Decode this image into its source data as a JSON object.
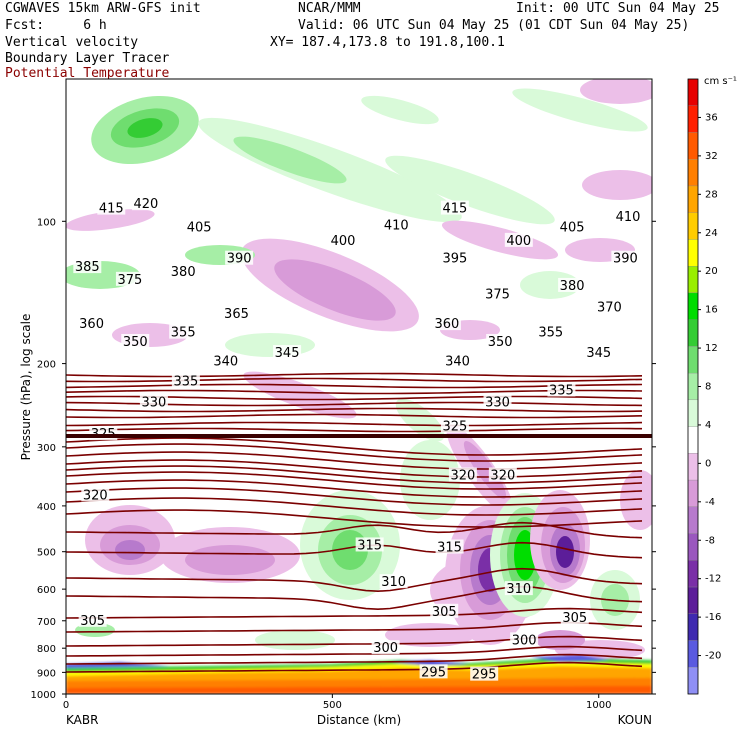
{
  "header": {
    "left1": "CGWAVES 15km ARW-GFS init",
    "left2": "Fcst:     6 h",
    "center1": "NCAR/MMM",
    "right1": "Init: 00 UTC Sun 04 May 25",
    "right2": "Valid: 06 UTC Sun 04 May 25 (01 CDT Sun 04 May 25)",
    "line3_left": "Vertical velocity",
    "line3_right": "XY= 187.4,173.8 to 191.8,100.1",
    "line4": "Boundary Layer Tracer",
    "line5": "Potential Temperature"
  },
  "colors": {
    "theta_contour": "#7a0000",
    "title_red": "#8b0000",
    "positive_ramp": [
      "#d9fad9",
      "#a6eea6",
      "#6fdd6f",
      "#34cc34",
      "#00dd00",
      "#99ee00",
      "#ffff00",
      "#ffcc00",
      "#ffa500",
      "#ff7f00",
      "#ff5a00",
      "#ff2000",
      "#e60000"
    ],
    "negative_ramp": [
      "#ecbfe8",
      "#d89bd8",
      "#b77acc",
      "#9a57be",
      "#7a2fa7",
      "#5c1d99",
      "#3f2ab0",
      "#5a5ae0",
      "#8f8ff5"
    ]
  },
  "chart_data": {
    "type": "heatmap",
    "title": "Vertical velocity",
    "overlays": [
      "Boundary Layer Tracer",
      "Potential Temperature"
    ],
    "xlabel": "Distance (km)",
    "ylabel": "Pressure (hPa), log scale",
    "x_range": [
      0,
      1100
    ],
    "y_range": [
      1000,
      50
    ],
    "x_ticks": [
      "0",
      "500",
      "1000"
    ],
    "y_ticks": [
      "100",
      "200",
      "300",
      "400",
      "500",
      "600",
      "700",
      "800",
      "900",
      "1000"
    ],
    "x_endpoints": [
      "KABR",
      "KOUN"
    ],
    "colorbar": {
      "unit": "cm s⁻¹",
      "labels": [
        "36",
        "32",
        "28",
        "24",
        "20",
        "16",
        "12",
        "8",
        "4",
        "0",
        "-4",
        "-8",
        "-12",
        "-16",
        "-20"
      ]
    },
    "theta_contours": [
      {
        "label": "415",
        "x": 85,
        "p": 94
      },
      {
        "label": "420",
        "x": 150,
        "p": 92
      },
      {
        "label": "405",
        "x": 250,
        "p": 103
      },
      {
        "label": "385",
        "x": 40,
        "p": 125
      },
      {
        "label": "375",
        "x": 120,
        "p": 133
      },
      {
        "label": "380",
        "x": 220,
        "p": 128
      },
      {
        "label": "390",
        "x": 325,
        "p": 120
      },
      {
        "label": "400",
        "x": 520,
        "p": 110
      },
      {
        "label": "410",
        "x": 620,
        "p": 102
      },
      {
        "label": "415",
        "x": 730,
        "p": 94
      },
      {
        "label": "395",
        "x": 730,
        "p": 120
      },
      {
        "label": "400",
        "x": 850,
        "p": 110
      },
      {
        "label": "405",
        "x": 950,
        "p": 103
      },
      {
        "label": "410",
        "x": 1055,
        "p": 98
      },
      {
        "label": "390",
        "x": 1050,
        "p": 120
      },
      {
        "label": "380",
        "x": 950,
        "p": 137
      },
      {
        "label": "375",
        "x": 810,
        "p": 143
      },
      {
        "label": "370",
        "x": 1020,
        "p": 152
      },
      {
        "label": "360",
        "x": 48,
        "p": 165
      },
      {
        "label": "350",
        "x": 130,
        "p": 180
      },
      {
        "label": "355",
        "x": 220,
        "p": 172
      },
      {
        "label": "365",
        "x": 320,
        "p": 157
      },
      {
        "label": "340",
        "x": 300,
        "p": 198
      },
      {
        "label": "345",
        "x": 415,
        "p": 190
      },
      {
        "label": "335",
        "x": 225,
        "p": 218
      },
      {
        "label": "330",
        "x": 165,
        "p": 242
      },
      {
        "label": "360",
        "x": 715,
        "p": 165
      },
      {
        "label": "350",
        "x": 815,
        "p": 180
      },
      {
        "label": "355",
        "x": 910,
        "p": 172
      },
      {
        "label": "345",
        "x": 1000,
        "p": 190
      },
      {
        "label": "340",
        "x": 735,
        "p": 198
      },
      {
        "label": "335",
        "x": 930,
        "p": 228
      },
      {
        "label": "330",
        "x": 810,
        "p": 242
      },
      {
        "label": "325",
        "x": 70,
        "p": 282
      },
      {
        "label": "325",
        "x": 730,
        "p": 272
      },
      {
        "label": "320",
        "x": 55,
        "p": 380
      },
      {
        "label": "320",
        "x": 745,
        "p": 345
      },
      {
        "label": "320",
        "x": 820,
        "p": 345
      },
      {
        "label": "315",
        "x": 570,
        "p": 485
      },
      {
        "label": "315",
        "x": 720,
        "p": 490
      },
      {
        "label": "310",
        "x": 615,
        "p": 580
      },
      {
        "label": "310",
        "x": 850,
        "p": 600
      },
      {
        "label": "305",
        "x": 50,
        "p": 700
      },
      {
        "label": "305",
        "x": 710,
        "p": 670
      },
      {
        "label": "305",
        "x": 955,
        "p": 690
      },
      {
        "label": "300",
        "x": 600,
        "p": 800
      },
      {
        "label": "300",
        "x": 860,
        "p": 770
      },
      {
        "label": "295",
        "x": 690,
        "p": 900
      },
      {
        "label": "295",
        "x": 785,
        "p": 910
      }
    ]
  }
}
